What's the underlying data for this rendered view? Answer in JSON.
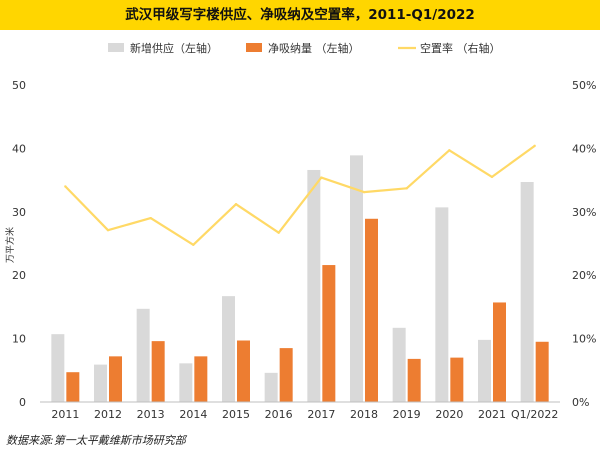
{
  "title": "武汉甲级写字楼供应、净吸纳及空置率，2011-Q1/2022",
  "source": "数据来源:第一太平戴维斯市场研究部",
  "chart_data": {
    "type": "bar+line",
    "title": "武汉甲级写字楼供应、净吸纳及空置率，2011-Q1/2022",
    "categories": [
      "2011",
      "2012",
      "2013",
      "2014",
      "2015",
      "2016",
      "2017",
      "2018",
      "2019",
      "2020",
      "2021",
      "Q1/2022"
    ],
    "series": [
      {
        "name": "新增供应（左轴）",
        "type": "bar",
        "axis": "left",
        "color": "#d9d9d9",
        "values": [
          10.7,
          5.9,
          14.7,
          6.1,
          16.7,
          4.6,
          36.6,
          38.9,
          11.7,
          30.7,
          9.8,
          34.7
        ]
      },
      {
        "name": "净吸纳量 （左轴）",
        "type": "bar",
        "axis": "left",
        "color": "#ed7d31",
        "values": [
          4.7,
          7.2,
          9.6,
          7.2,
          9.7,
          8.5,
          21.6,
          28.9,
          6.8,
          7.0,
          15.7,
          9.5
        ]
      },
      {
        "name": "空置率 （右轴）",
        "type": "line",
        "axis": "right",
        "color": "#ffd966",
        "values": [
          34.0,
          27.1,
          29.0,
          24.8,
          31.2,
          26.7,
          35.4,
          33.1,
          33.7,
          39.7,
          35.5,
          40.4
        ]
      }
    ],
    "ylabel": "万平方米",
    "ylim": [
      0,
      50
    ],
    "yticks": [
      "0",
      "10",
      "20",
      "30",
      "40",
      "50"
    ],
    "y2lim": [
      0,
      50
    ],
    "y2ticks": [
      "0%",
      "10%",
      "20%",
      "30%",
      "40%",
      "50%"
    ],
    "legend_position": "top"
  }
}
